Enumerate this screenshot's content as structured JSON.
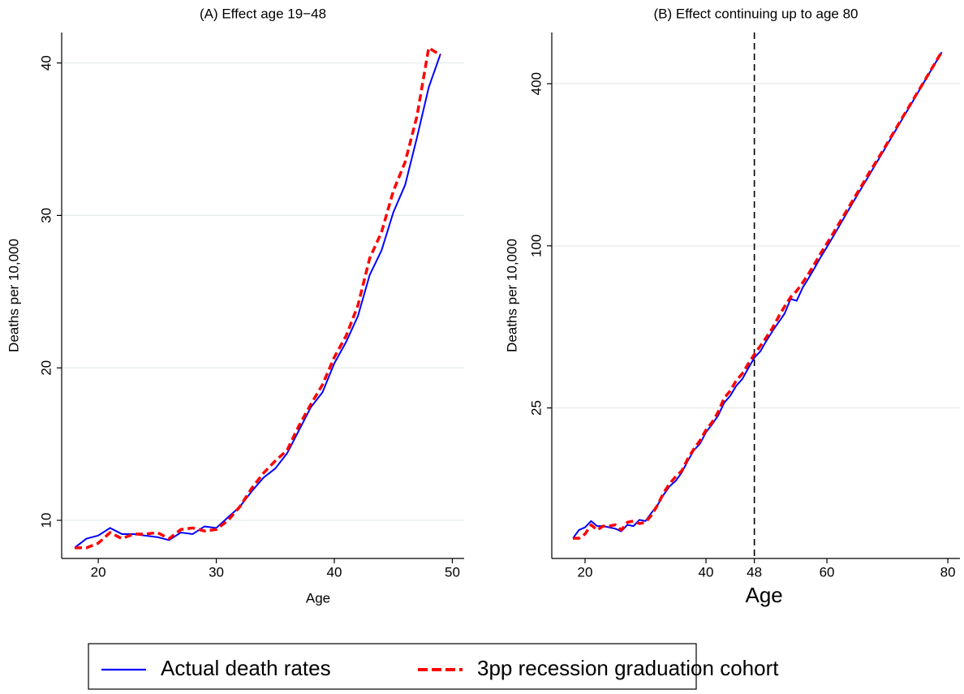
{
  "chart_data": [
    {
      "type": "line",
      "title": "(A) Effect age 19−48",
      "xlabel": "Age",
      "ylabel": "Deaths per 10,000",
      "x": [
        18,
        19,
        20,
        21,
        22,
        23,
        24,
        25,
        26,
        27,
        28,
        29,
        30,
        31,
        32,
        33,
        34,
        35,
        36,
        37,
        38,
        39,
        40,
        41,
        42,
        43,
        44,
        45,
        46,
        47,
        48,
        49
      ],
      "series": [
        {
          "name": "Actual death rates",
          "color": "#0000ff",
          "dashed": false,
          "values": [
            8.2,
            8.8,
            9.0,
            9.5,
            9.1,
            9.1,
            9.0,
            8.9,
            8.7,
            9.2,
            9.1,
            9.6,
            9.5,
            10.2,
            10.9,
            11.9,
            12.8,
            13.4,
            14.4,
            15.9,
            17.4,
            18.4,
            20.3,
            21.7,
            23.4,
            26.1,
            27.7,
            30.2,
            32.0,
            35.1,
            38.4,
            40.6
          ]
        },
        {
          "name": "3pp recession graduation cohort",
          "color": "#ff0000",
          "dashed": true,
          "values": [
            8.2,
            8.2,
            8.5,
            9.2,
            8.8,
            9.1,
            9.1,
            9.2,
            8.8,
            9.4,
            9.5,
            9.3,
            9.4,
            10.0,
            10.9,
            12.1,
            13.1,
            13.9,
            14.6,
            16.2,
            17.6,
            18.9,
            20.7,
            22.1,
            24.1,
            27.2,
            28.9,
            31.6,
            33.5,
            36.5,
            41.0,
            40.5
          ]
        }
      ],
      "xlim": [
        16.9,
        51
      ],
      "xticks": [
        20,
        30,
        40,
        50
      ],
      "ylim": [
        7.5,
        42
      ],
      "yticks": [
        10,
        20,
        30,
        40
      ],
      "log": false,
      "grid": true
    },
    {
      "type": "line",
      "title": "(B) Effect continuing up to age 80",
      "xlabel": "Age",
      "ylabel": "Deaths per 10,000",
      "x": [
        18,
        19,
        20,
        21,
        22,
        23,
        24,
        25,
        26,
        27,
        28,
        29,
        30,
        31,
        32,
        33,
        34,
        35,
        36,
        37,
        38,
        39,
        40,
        41,
        42,
        43,
        44,
        45,
        46,
        47,
        48,
        49,
        50,
        51,
        52,
        53,
        54,
        55,
        56,
        57,
        58,
        59,
        60,
        61,
        62,
        63,
        64,
        65,
        66,
        67,
        68,
        69,
        70,
        71,
        72,
        73,
        74,
        75,
        76,
        77,
        78,
        79
      ],
      "series": [
        {
          "color": "#0000ff",
          "dashed": false,
          "values": [
            8.2,
            8.8,
            9.0,
            9.5,
            9.1,
            9.1,
            9.0,
            8.9,
            8.7,
            9.2,
            9.1,
            9.6,
            9.5,
            10.2,
            10.9,
            11.9,
            12.8,
            13.4,
            14.4,
            15.9,
            17.4,
            18.4,
            20.3,
            21.7,
            23.4,
            26.1,
            27.7,
            30.2,
            32.0,
            35.1,
            38.4,
            40.6,
            44.4,
            48.2,
            52,
            56,
            63.5,
            62.5,
            70,
            76,
            83,
            91,
            99,
            108,
            118,
            129,
            141,
            154,
            168,
            183,
            200,
            218,
            238,
            260,
            284,
            310,
            338,
            369,
            403,
            440,
            480,
            524
          ]
        },
        {
          "color": "#ff0000",
          "dashed": true,
          "values": [
            8.2,
            8.2,
            8.5,
            9.2,
            8.8,
            9.1,
            9.1,
            9.2,
            8.8,
            9.4,
            9.5,
            9.3,
            9.4,
            10.0,
            10.9,
            12.1,
            13.1,
            13.9,
            14.6,
            16.2,
            17.6,
            18.9,
            20.7,
            22.1,
            24.1,
            27.2,
            28.9,
            31.6,
            33.5,
            36.5,
            39.5,
            42.5,
            45.8,
            49.5,
            54.5,
            59.5,
            64.5,
            68,
            73,
            79,
            86,
            94,
            102,
            111,
            121,
            132,
            144,
            157,
            171,
            187,
            203,
            221,
            241,
            263,
            287,
            313,
            341,
            372,
            405,
            442,
            482,
            526
          ]
        }
      ],
      "xlim": [
        14.5,
        82
      ],
      "xticks": [
        20,
        40,
        48,
        60,
        80
      ],
      "ylim": [
        6.9,
        620
      ],
      "yticks": [
        25,
        100,
        400
      ],
      "log": true,
      "grid": true,
      "vline": 48
    }
  ]
}
